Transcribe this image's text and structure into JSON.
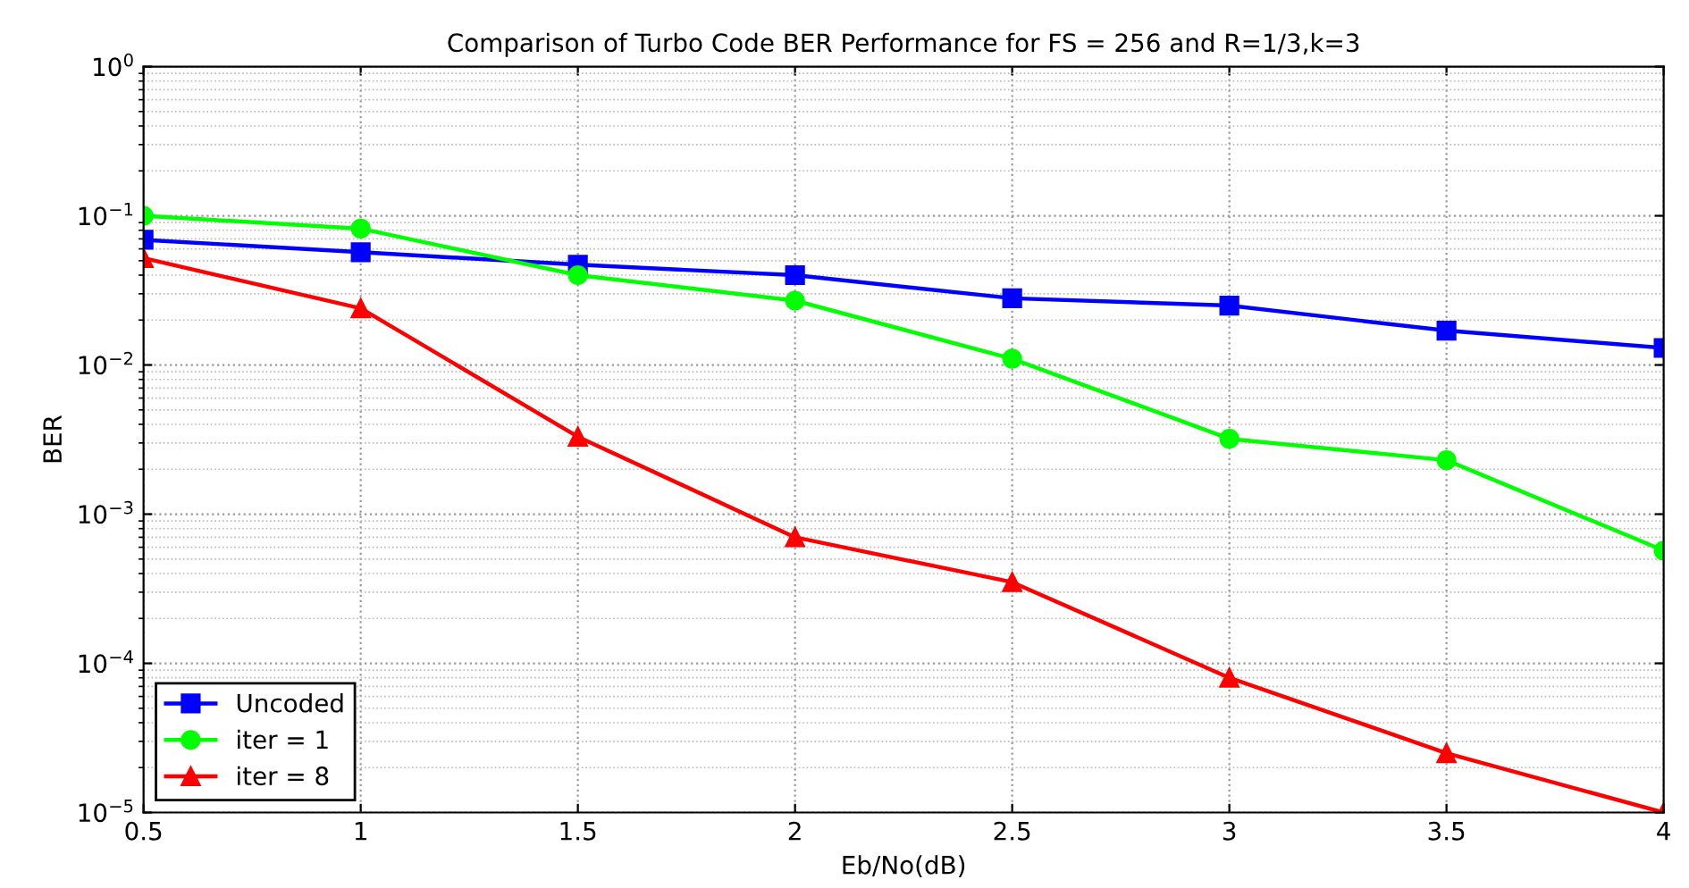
{
  "chart_data": {
    "type": "line",
    "title": "Comparison of Turbo Code BER Performance for FS = 256 and R=1/3,k=3",
    "xlabel": "Eb/No(dB)",
    "ylabel": "BER",
    "x": [
      0.5,
      1,
      1.5,
      2,
      2.5,
      3,
      3.5,
      4
    ],
    "series": [
      {
        "name": "Uncoded",
        "color": "#0000ff",
        "marker": "square",
        "values": [
          0.069,
          0.057,
          0.047,
          0.04,
          0.028,
          0.025,
          0.017,
          0.013
        ]
      },
      {
        "name": "iter = 1",
        "color": "#00ff00",
        "marker": "circle",
        "values": [
          0.1,
          0.082,
          0.04,
          0.027,
          0.011,
          0.0032,
          0.0023,
          0.00057
        ]
      },
      {
        "name": "iter = 8",
        "color": "#ff0000",
        "marker": "triangle",
        "values": [
          0.052,
          0.024,
          0.0033,
          0.0007,
          0.00035,
          8e-05,
          2.5e-05,
          1e-05
        ]
      }
    ],
    "log": "y",
    "xlim": [
      0.5,
      4
    ],
    "xticks": [
      0.5,
      1,
      1.5,
      2,
      2.5,
      3,
      3.5,
      4
    ],
    "ylim": [
      1e-05,
      1
    ],
    "yticks": [
      {
        "value": 1e-05,
        "label": "10$^{−5}$"
      },
      {
        "value": 0.0001,
        "label": "10$^{−4}$"
      },
      {
        "value": 0.001,
        "label": "10$^{−3}$"
      },
      {
        "value": 0.01,
        "label": "10$^{−2}$"
      },
      {
        "value": 0.1,
        "label": "10$^{−1}$"
      },
      {
        "value": 1,
        "label": "10$^{0}$"
      }
    ],
    "grid": true,
    "legend": "bottom left",
    "line_style": "solid"
  }
}
